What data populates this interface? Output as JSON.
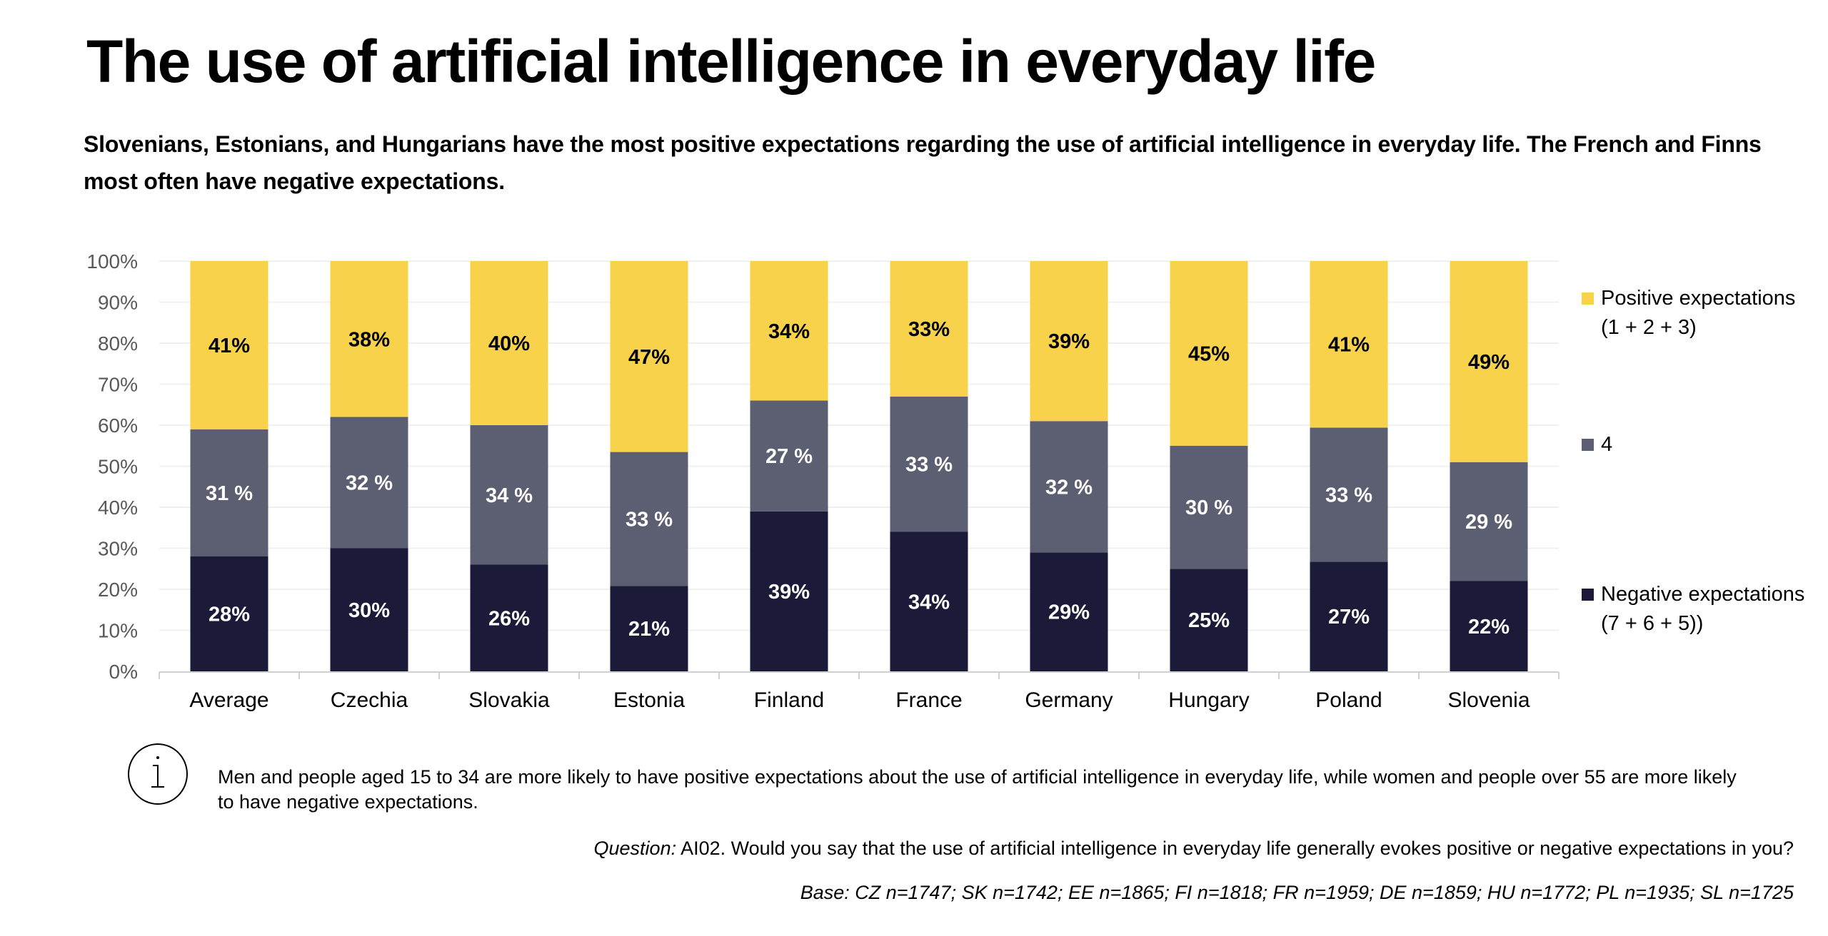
{
  "header": {
    "title": "The use of artificial intelligence in everyday life",
    "subtitle": "Slovenians, Estonians, and Hungarians have the most positive expectations regarding the use of artificial intelligence in everyday life. The French and Finns most often have negative expectations."
  },
  "chart_data": {
    "type": "bar",
    "stacked": true,
    "normalized": true,
    "title": "The use of artificial intelligence in everyday life",
    "xlabel": "",
    "ylabel": "",
    "ylim": [
      0,
      100
    ],
    "yticks": [
      "0%",
      "10%",
      "20%",
      "30%",
      "40%",
      "50%",
      "60%",
      "70%",
      "80%",
      "90%",
      "100%"
    ],
    "grid": true,
    "legend_position": "right",
    "categories": [
      "Average",
      "Czechia",
      "Slovakia",
      "Estonia",
      "Finland",
      "France",
      "Germany",
      "Hungary",
      "Poland",
      "Slovenia"
    ],
    "series": [
      {
        "name": "Negative expectations (7 + 6 + 5))",
        "color": "#1B1A38",
        "label_color": "#FFFFFF",
        "values": [
          28,
          30,
          26,
          21,
          39,
          34,
          29,
          25,
          27,
          22
        ],
        "labels": [
          "28%",
          "30%",
          "26%",
          "21%",
          "39%",
          "34%",
          "29%",
          "25%",
          "27%",
          "22%"
        ]
      },
      {
        "name": "4",
        "color": "#5C5F72",
        "label_color": "#FFFFFF",
        "values": [
          31,
          32,
          34,
          33,
          27,
          33,
          32,
          30,
          33,
          29
        ],
        "labels": [
          "31 %",
          "32 %",
          "34 %",
          "33 %",
          "27 %",
          "33 %",
          "32 %",
          "30 %",
          "33 %",
          "29 %"
        ]
      },
      {
        "name": "Positive expectations (1 + 2 + 3)",
        "color": "#F7D24A",
        "label_color": "#000000",
        "values": [
          41,
          38,
          40,
          47,
          34,
          33,
          39,
          45,
          41,
          49
        ],
        "labels": [
          "41%",
          "38%",
          "40%",
          "47%",
          "34%",
          "33%",
          "39%",
          "45%",
          "41%",
          "49%"
        ]
      }
    ]
  },
  "legend": {
    "items": [
      {
        "label": "Positive expectations (1 + 2 + 3)",
        "color": "#F7D24A"
      },
      {
        "label": "4",
        "color": "#5C5F72"
      },
      {
        "label": "Negative expectations (7 + 6 + 5))",
        "color": "#1B1A38"
      }
    ]
  },
  "footer": {
    "info_icon": "info-icon",
    "info_text": "Men and people aged 15 to 34 are more likely to have positive expectations about the use of artificial intelligence in everyday life, while women and people over 55 are more likely to have negative expectations.",
    "question_label": "Question:",
    "question_text": " AI02. Would you say that the use of artificial intelligence in everyday life generally evokes positive or negative expectations in you?",
    "base": "Base: CZ n=1747; SK n=1742; EE n=1865; FI n=1818; FR n=1959; DE n=1859; HU n=1772; PL n=1935; SL n=1725"
  }
}
